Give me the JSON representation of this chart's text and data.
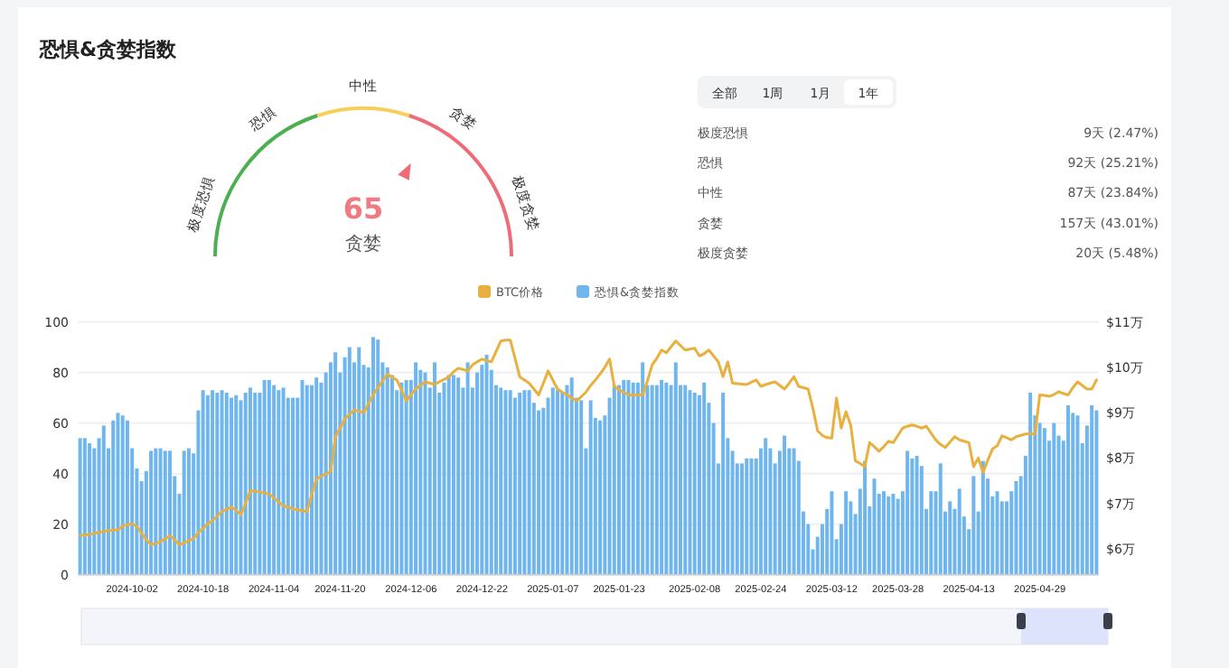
{
  "chart_data": [
    {
      "type": "other",
      "title": "恐惧&贪婪指数",
      "annotations": [
        "极度恐惧",
        "恐惧",
        "中性",
        "贪婪",
        "极度贪婪",
        "65",
        "贪婪"
      ]
    },
    {
      "type": "other",
      "annotations": [
        "全部",
        "1周",
        "1月",
        "1年",
        "极度恐惧",
        "9天 (2.47%)",
        "恐惧",
        "92天 (25.21%)",
        "中性",
        "87天 (23.84%)",
        "贪婪",
        "157天 (43.01%)",
        "极度贪婪",
        "20天 (5.48%)"
      ]
    },
    {
      "type": "bar",
      "legend": "top",
      "grid": "y",
      "categories": [
        null,
        null,
        null,
        null,
        null,
        null,
        null,
        null,
        null,
        null,
        null,
        "2024-10-02",
        null,
        null,
        null,
        null,
        null,
        null,
        null,
        null,
        null,
        null,
        null,
        null,
        null,
        null,
        "2024-10-18",
        null,
        null,
        null,
        null,
        null,
        null,
        null,
        null,
        null,
        null,
        null,
        null,
        null,
        null,
        "2024-11-04",
        null,
        null,
        null,
        null,
        null,
        null,
        null,
        null,
        null,
        null,
        null,
        null,
        null,
        "2024-11-20",
        null,
        null,
        null,
        null,
        null,
        null,
        null,
        null,
        null,
        null,
        null,
        null,
        null,
        null,
        "2024-12-06",
        null,
        null,
        null,
        null,
        null,
        null,
        null,
        null,
        null,
        null,
        null,
        null,
        null,
        null,
        "2024-12-22",
        null,
        null,
        null,
        null,
        null,
        null,
        null,
        null,
        null,
        null,
        null,
        null,
        null,
        null,
        "2025-01-07",
        null,
        null,
        null,
        null,
        null,
        null,
        null,
        null,
        null,
        null,
        null,
        null,
        null,
        "2025-01-23",
        null,
        null,
        null,
        null,
        null,
        null,
        null,
        null,
        null,
        null,
        null,
        null,
        null,
        null,
        null,
        "2025-02-08",
        null,
        null,
        null,
        null,
        null,
        null,
        null,
        null,
        null,
        null,
        null,
        null,
        null,
        "2025-02-24",
        null,
        null,
        null,
        null,
        null,
        null,
        null,
        null,
        null,
        null,
        null,
        null,
        null,
        null,
        "2025-03-12",
        null,
        null,
        null,
        null,
        null,
        null,
        null,
        null,
        null,
        null,
        null,
        null,
        null,
        "2025-03-28",
        null,
        null,
        null,
        null,
        null,
        null,
        null,
        null,
        null,
        null,
        null,
        null,
        null,
        null,
        "2025-04-13",
        null,
        null,
        null,
        null,
        null,
        null,
        null,
        null,
        null,
        null,
        null,
        null,
        null,
        null,
        "2025-04-29",
        null,
        null,
        null,
        null,
        null,
        null,
        null,
        null,
        null,
        null,
        null,
        null
      ],
      "ylim": [
        0,
        100
      ],
      "yticks": [
        0,
        20,
        40,
        60,
        80,
        100
      ],
      "y2lim": [
        5.43,
        11
      ],
      "y2ticks": [
        {
          "value": 6,
          "label": "$6万"
        },
        {
          "value": 7,
          "label": "$7万"
        },
        {
          "value": 8,
          "label": "$8万"
        },
        {
          "value": 9,
          "label": "$9万"
        },
        {
          "value": 10,
          "label": "$10万"
        },
        {
          "value": 11,
          "label": "$11万"
        }
      ],
      "series": [
        {
          "name": "BTC价格",
          "type": "line",
          "axis": "y2",
          "color": "#e8b03e",
          "values": [
            6.29,
            6.3,
            6.32,
            6.34,
            6.36,
            6.38,
            6.4,
            6.41,
            6.42,
            6.5,
            6.53,
            6.55,
            6.49,
            6.35,
            6.2,
            6.09,
            6.12,
            6.16,
            6.22,
            6.29,
            6.2,
            6.09,
            6.13,
            6.18,
            6.22,
            6.36,
            6.45,
            6.55,
            6.62,
            6.72,
            6.82,
            6.87,
            6.92,
            6.85,
            6.75,
            7.0,
            7.28,
            7.27,
            7.25,
            7.23,
            7.21,
            7.12,
            7.03,
            6.95,
            6.92,
            6.88,
            6.86,
            6.84,
            6.82,
            7.2,
            7.54,
            7.6,
            7.65,
            7.7,
            8.47,
            8.66,
            8.86,
            8.96,
            9.06,
            9.03,
            9.0,
            9.2,
            9.39,
            9.55,
            9.7,
            9.85,
            9.78,
            9.72,
            9.5,
            9.26,
            9.4,
            9.52,
            9.6,
            9.68,
            9.65,
            9.62,
            9.68,
            9.73,
            9.79,
            9.9,
            9.98,
            9.95,
            9.92,
            10.05,
            10.12,
            10.18,
            10.15,
            10.12,
            10.35,
            10.58,
            10.6,
            10.6,
            10.2,
            9.79,
            9.72,
            9.65,
            9.52,
            9.39,
            9.65,
            9.92,
            9.72,
            9.52,
            9.45,
            9.39,
            9.32,
            9.26,
            9.35,
            9.45,
            9.6,
            9.72,
            9.85,
            10.0,
            10.18,
            9.58,
            9.5,
            9.45,
            9.39,
            9.39,
            9.39,
            9.39,
            9.7,
            10.05,
            10.2,
            10.38,
            10.32,
            10.45,
            10.58,
            10.48,
            10.38,
            10.4,
            10.42,
            10.25,
            10.3,
            10.38,
            10.25,
            10.12,
            9.79,
            10.12,
            9.65,
            9.64,
            9.63,
            9.62,
            9.67,
            9.72,
            9.58,
            9.62,
            9.65,
            9.68,
            9.6,
            9.52,
            9.65,
            9.79,
            9.58,
            9.55,
            9.52,
            9.1,
            8.6,
            8.5,
            8.45,
            8.44,
            9.32,
            8.66,
            9.02,
            8.73,
            7.94,
            7.88,
            7.81,
            8.34,
            8.25,
            8.15,
            8.25,
            8.37,
            8.34,
            8.5,
            8.66,
            8.7,
            8.73,
            8.7,
            8.66,
            8.7,
            8.55,
            8.4,
            8.3,
            8.23,
            8.35,
            8.47,
            8.4,
            8.37,
            8.34,
            7.81,
            8.0,
            7.68,
            7.95,
            8.2,
            8.27,
            8.49,
            8.45,
            8.4,
            8.47,
            8.5,
            8.53,
            8.53,
            8.53,
            9.39,
            9.38,
            9.36,
            9.4,
            9.46,
            9.42,
            9.39,
            9.55,
            9.68,
            9.6,
            9.52,
            9.52,
            9.72
          ]
        },
        {
          "name": "恐惧&贪婪指数",
          "type": "bar",
          "color": "#6fb5ee",
          "values": [
            54,
            54,
            52,
            50,
            54,
            59,
            50,
            61,
            64,
            63,
            61,
            50,
            42,
            37,
            41,
            49,
            50,
            50,
            49,
            49,
            39,
            32,
            49,
            50,
            48,
            65,
            73,
            71,
            73,
            72,
            73,
            72,
            70,
            71,
            69,
            72,
            74,
            72,
            72,
            77,
            77,
            75,
            73,
            74,
            70,
            70,
            70,
            77,
            75,
            75,
            78,
            76,
            80,
            84,
            88,
            80,
            86,
            90,
            84,
            90,
            83,
            82,
            94,
            93,
            84,
            82,
            79,
            73,
            76,
            77,
            77,
            84,
            81,
            80,
            74,
            84,
            72,
            76,
            79,
            79,
            78,
            74,
            84,
            74,
            80,
            83,
            87,
            81,
            75,
            74,
            73,
            73,
            70,
            72,
            73,
            73,
            68,
            65,
            66,
            70,
            74,
            73,
            72,
            75,
            78,
            70,
            69,
            50,
            69,
            62,
            61,
            63,
            70,
            75,
            75,
            77,
            77,
            76,
            76,
            84,
            75,
            75,
            75,
            77,
            76,
            75,
            84,
            75,
            75,
            73,
            72,
            71,
            76,
            68,
            60,
            44,
            72,
            54,
            49,
            44,
            44,
            46,
            46,
            46,
            50,
            54,
            50,
            44,
            49,
            55,
            50,
            50,
            45,
            25,
            20,
            10,
            15,
            20,
            26,
            33,
            14,
            20,
            33,
            29,
            24,
            34,
            45,
            27,
            38,
            32,
            33,
            31,
            32,
            30,
            33,
            49,
            46,
            47,
            43,
            26,
            33,
            33,
            44,
            25,
            29,
            26,
            34,
            23,
            18,
            39,
            25,
            45,
            38,
            31,
            33,
            29,
            29,
            33,
            37,
            39,
            47,
            72,
            63,
            60,
            58,
            53,
            60,
            55,
            53,
            67,
            64,
            63,
            52,
            59,
            67,
            65
          ]
        }
      ]
    }
  ]
}
